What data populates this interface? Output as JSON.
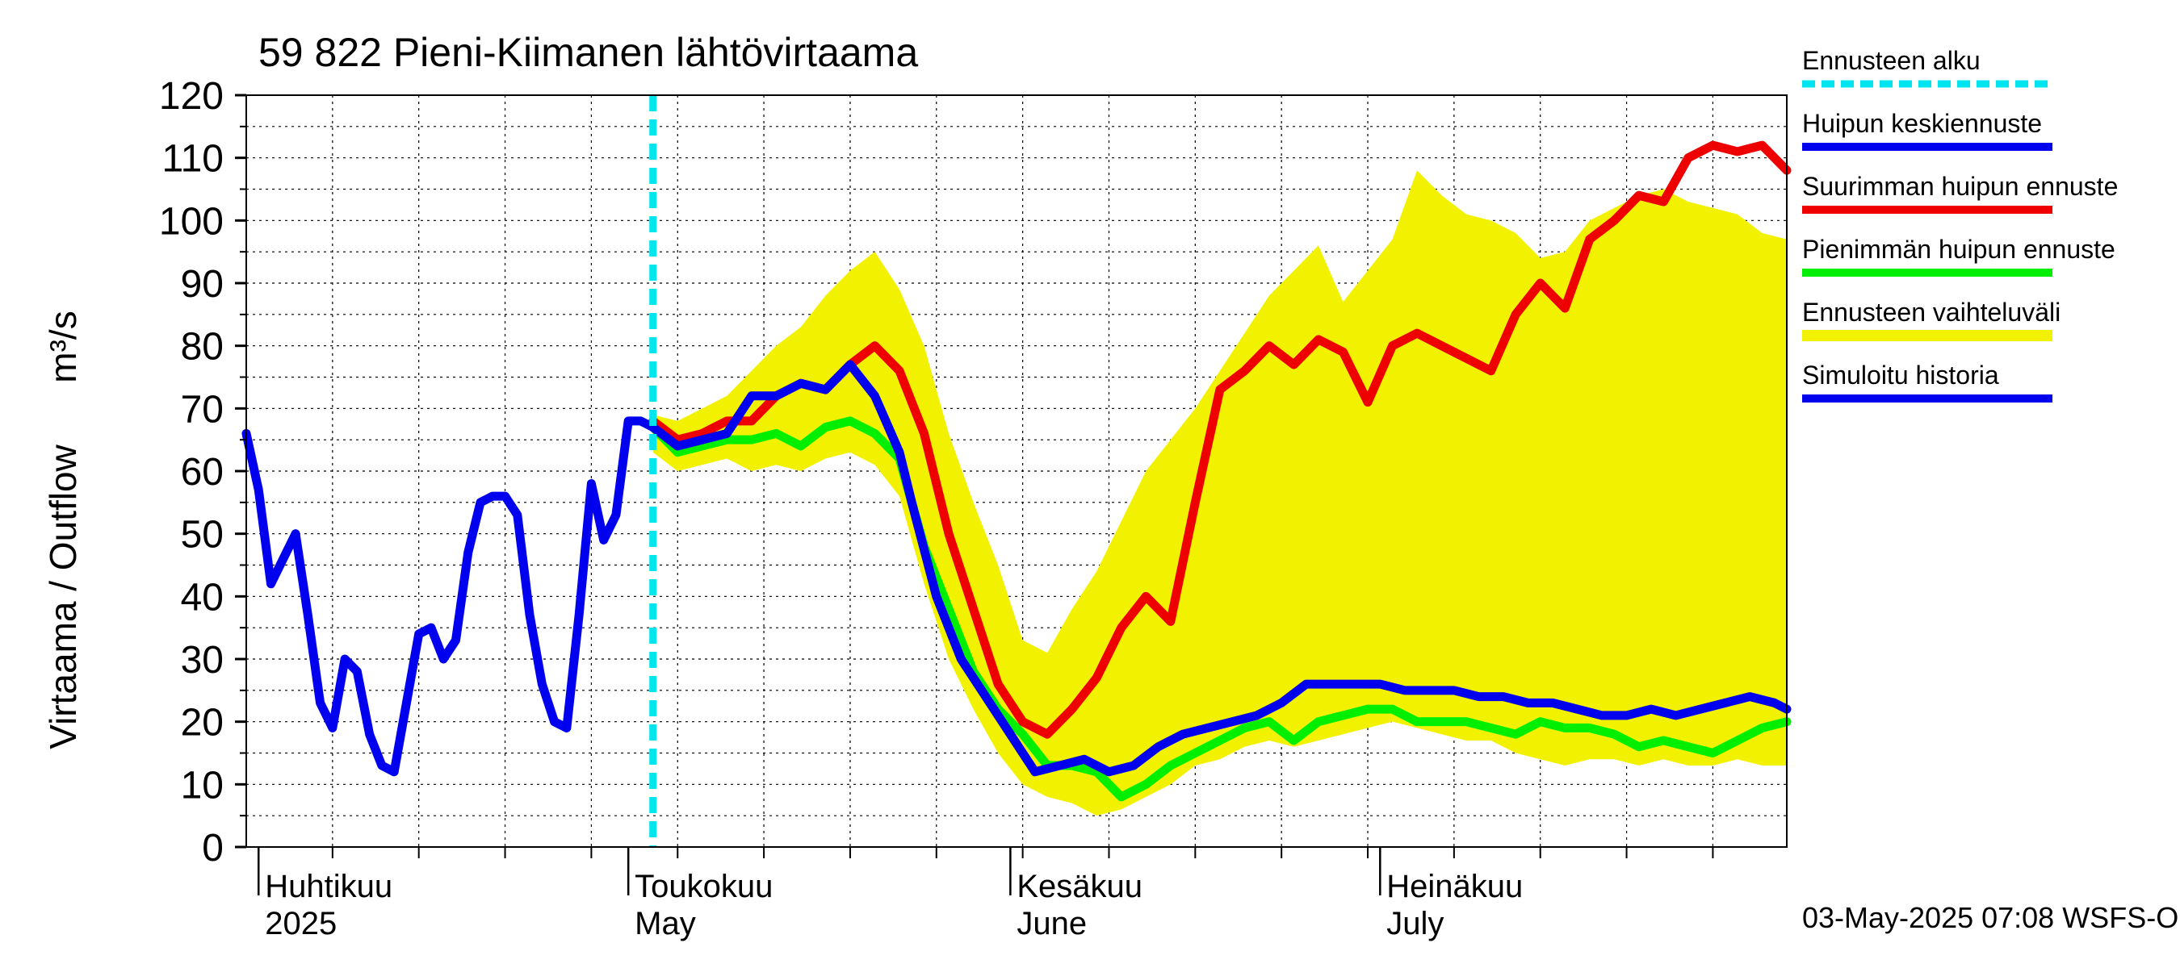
{
  "chart_data": {
    "type": "line",
    "title": "59 822 Pieni-Kiimanen lähtövirtaama",
    "ylabel": "Virtaama / Outflow",
    "yunit": "m³/s",
    "ylim": [
      0,
      120
    ],
    "yticks": [
      "0",
      "10",
      "20",
      "30",
      "40",
      "50",
      "60",
      "70",
      "80",
      "90",
      "100",
      "110",
      "120"
    ],
    "xlim": [
      "2025-03-31",
      "2025-08-03"
    ],
    "grid": true,
    "legend_position": "right",
    "month_labels": [
      {
        "date": "2025-04-01",
        "line1": "Huhtikuu",
        "line2": "2025"
      },
      {
        "date": "2025-05-01",
        "line1": "Toukokuu",
        "line2": "May"
      },
      {
        "date": "2025-06-01",
        "line1": "Kesäkuu",
        "line2": "June"
      },
      {
        "date": "2025-07-01",
        "line1": "Heinäkuu",
        "line2": "July"
      }
    ],
    "forecast_start": "2025-05-03",
    "footer": "03-May-2025 07:08 WSFS-O",
    "legend": [
      {
        "label": "Ennusteen alku",
        "color": "#00e5ee",
        "style": "dashed"
      },
      {
        "label": "Huipun keskiennuste",
        "color": "#0000ee",
        "style": "line"
      },
      {
        "label": "Suurimman huipun ennuste",
        "color": "#ee0000",
        "style": "line"
      },
      {
        "label": "Pienimmän huipun ennuste",
        "color": "#00ee00",
        "style": "line"
      },
      {
        "label": "Ennusteen vaihteluväli",
        "color": "#f2f200",
        "style": "band"
      },
      {
        "label": "Simuloitu historia",
        "color": "#0000ee",
        "style": "line"
      }
    ],
    "series": [
      {
        "name": "Simuloitu historia",
        "color": "#0000ee",
        "x": [
          "2025-03-31",
          "2025-04-01",
          "2025-04-02",
          "2025-04-03",
          "2025-04-04",
          "2025-04-05",
          "2025-04-06",
          "2025-04-07",
          "2025-04-08",
          "2025-04-09",
          "2025-04-10",
          "2025-04-11",
          "2025-04-12",
          "2025-04-13",
          "2025-04-14",
          "2025-04-15",
          "2025-04-16",
          "2025-04-17",
          "2025-04-18",
          "2025-04-19",
          "2025-04-20",
          "2025-04-21",
          "2025-04-22",
          "2025-04-23",
          "2025-04-24",
          "2025-04-25",
          "2025-04-26",
          "2025-04-27",
          "2025-04-28",
          "2025-04-29",
          "2025-04-30",
          "2025-05-01",
          "2025-05-02",
          "2025-05-03"
        ],
        "values": [
          66,
          57,
          42,
          46,
          50,
          37,
          23,
          19,
          30,
          28,
          18,
          13,
          12,
          23,
          34,
          35,
          30,
          33,
          47,
          55,
          56,
          56,
          53,
          37,
          26,
          20,
          19,
          37,
          58,
          49,
          53,
          68,
          68,
          67
        ]
      },
      {
        "name": "Huipun keskiennuste",
        "color": "#0000ee",
        "x": [
          "2025-05-03",
          "2025-05-05",
          "2025-05-07",
          "2025-05-09",
          "2025-05-11",
          "2025-05-13",
          "2025-05-15",
          "2025-05-17",
          "2025-05-19",
          "2025-05-21",
          "2025-05-23",
          "2025-05-24",
          "2025-05-26",
          "2025-05-28",
          "2025-05-30",
          "2025-06-01",
          "2025-06-03",
          "2025-06-05",
          "2025-06-07",
          "2025-06-09",
          "2025-06-11",
          "2025-06-13",
          "2025-06-15",
          "2025-06-17",
          "2025-06-19",
          "2025-06-21",
          "2025-06-23",
          "2025-06-25",
          "2025-06-27",
          "2025-06-29",
          "2025-07-01",
          "2025-07-03",
          "2025-07-05",
          "2025-07-07",
          "2025-07-09",
          "2025-07-11",
          "2025-07-13",
          "2025-07-15",
          "2025-07-17",
          "2025-07-19",
          "2025-07-21",
          "2025-07-23",
          "2025-07-25",
          "2025-07-27",
          "2025-07-29",
          "2025-07-31",
          "2025-08-02",
          "2025-08-03"
        ],
        "values": [
          67,
          64,
          65,
          66,
          72,
          72,
          74,
          73,
          77,
          72,
          63,
          55,
          40,
          30,
          24,
          18,
          12,
          13,
          14,
          12,
          13,
          16,
          18,
          19,
          20,
          21,
          23,
          26,
          26,
          26,
          26,
          25,
          25,
          25,
          24,
          24,
          23,
          23,
          22,
          21,
          21,
          22,
          21,
          22,
          23,
          24,
          23,
          22
        ]
      },
      {
        "name": "Suurimman huipun ennuste",
        "color": "#ee0000",
        "x": [
          "2025-05-03",
          "2025-05-05",
          "2025-05-07",
          "2025-05-09",
          "2025-05-11",
          "2025-05-13",
          "2025-05-15",
          "2025-05-17",
          "2025-05-19",
          "2025-05-21",
          "2025-05-23",
          "2025-05-25",
          "2025-05-27",
          "2025-05-29",
          "2025-05-31",
          "2025-06-02",
          "2025-06-04",
          "2025-06-06",
          "2025-06-08",
          "2025-06-10",
          "2025-06-12",
          "2025-06-14",
          "2025-06-16",
          "2025-06-18",
          "2025-06-20",
          "2025-06-22",
          "2025-06-24",
          "2025-06-26",
          "2025-06-28",
          "2025-06-30",
          "2025-07-02",
          "2025-07-04",
          "2025-07-06",
          "2025-07-08",
          "2025-07-10",
          "2025-07-12",
          "2025-07-14",
          "2025-07-16",
          "2025-07-18",
          "2025-07-20",
          "2025-07-22",
          "2025-07-24",
          "2025-07-26",
          "2025-07-28",
          "2025-07-30",
          "2025-08-01",
          "2025-08-03"
        ],
        "values": [
          68,
          65,
          66,
          68,
          68,
          72,
          74,
          73,
          77,
          80,
          76,
          66,
          50,
          38,
          26,
          20,
          18,
          22,
          27,
          35,
          40,
          36,
          55,
          73,
          76,
          80,
          77,
          81,
          79,
          71,
          80,
          82,
          80,
          78,
          76,
          85,
          90,
          86,
          97,
          100,
          104,
          103,
          110,
          112,
          111,
          112,
          108
        ]
      },
      {
        "name": "Pienimmän huipun ennuste",
        "color": "#00ee00",
        "x": [
          "2025-05-03",
          "2025-05-05",
          "2025-05-07",
          "2025-05-09",
          "2025-05-11",
          "2025-05-13",
          "2025-05-15",
          "2025-05-17",
          "2025-05-19",
          "2025-05-21",
          "2025-05-23",
          "2025-05-25",
          "2025-05-27",
          "2025-05-29",
          "2025-05-31",
          "2025-06-02",
          "2025-06-04",
          "2025-06-06",
          "2025-06-08",
          "2025-06-10",
          "2025-06-12",
          "2025-06-14",
          "2025-06-16",
          "2025-06-18",
          "2025-06-20",
          "2025-06-22",
          "2025-06-24",
          "2025-06-26",
          "2025-06-28",
          "2025-06-30",
          "2025-07-02",
          "2025-07-04",
          "2025-07-06",
          "2025-07-08",
          "2025-07-10",
          "2025-07-12",
          "2025-07-14",
          "2025-07-16",
          "2025-07-18",
          "2025-07-20",
          "2025-07-22",
          "2025-07-24",
          "2025-07-26",
          "2025-07-28",
          "2025-07-30",
          "2025-08-01",
          "2025-08-03"
        ],
        "values": [
          67,
          63,
          64,
          65,
          65,
          66,
          64,
          67,
          68,
          66,
          62,
          48,
          38,
          28,
          22,
          18,
          13,
          13,
          12,
          8,
          10,
          13,
          15,
          17,
          19,
          20,
          17,
          20,
          21,
          22,
          22,
          20,
          20,
          20,
          19,
          18,
          20,
          19,
          19,
          18,
          16,
          17,
          16,
          15,
          17,
          19,
          20
        ]
      }
    ],
    "band": {
      "name": "Ennusteen vaihteluväli",
      "color": "#f2f200",
      "x": [
        "2025-05-03",
        "2025-05-05",
        "2025-05-07",
        "2025-05-09",
        "2025-05-11",
        "2025-05-13",
        "2025-05-15",
        "2025-05-17",
        "2025-05-19",
        "2025-05-21",
        "2025-05-23",
        "2025-05-25",
        "2025-05-27",
        "2025-05-29",
        "2025-05-31",
        "2025-06-02",
        "2025-06-04",
        "2025-06-06",
        "2025-06-08",
        "2025-06-10",
        "2025-06-12",
        "2025-06-14",
        "2025-06-16",
        "2025-06-18",
        "2025-06-20",
        "2025-06-22",
        "2025-06-24",
        "2025-06-26",
        "2025-06-28",
        "2025-06-30",
        "2025-07-02",
        "2025-07-04",
        "2025-07-06",
        "2025-07-08",
        "2025-07-10",
        "2025-07-12",
        "2025-07-14",
        "2025-07-16",
        "2025-07-18",
        "2025-07-20",
        "2025-07-22",
        "2025-07-24",
        "2025-07-26",
        "2025-07-28",
        "2025-07-30",
        "2025-08-01",
        "2025-08-03"
      ],
      "upper": [
        69,
        68,
        70,
        72,
        76,
        80,
        83,
        88,
        92,
        95,
        89,
        80,
        66,
        55,
        45,
        33,
        31,
        38,
        44,
        52,
        60,
        65,
        70,
        76,
        82,
        88,
        92,
        96,
        87,
        92,
        97,
        108,
        104,
        101,
        100,
        98,
        94,
        95,
        100,
        102,
        104,
        105,
        103,
        102,
        101,
        98,
        97
      ],
      "lower": [
        63,
        60,
        61,
        62,
        60,
        61,
        60,
        62,
        63,
        61,
        56,
        42,
        30,
        22,
        15,
        10,
        8,
        7,
        5,
        6,
        8,
        10,
        13,
        14,
        16,
        17,
        16,
        17,
        18,
        19,
        20,
        19,
        18,
        17,
        17,
        15,
        14,
        13,
        14,
        14,
        13,
        14,
        13,
        13,
        14,
        13,
        13
      ]
    }
  }
}
